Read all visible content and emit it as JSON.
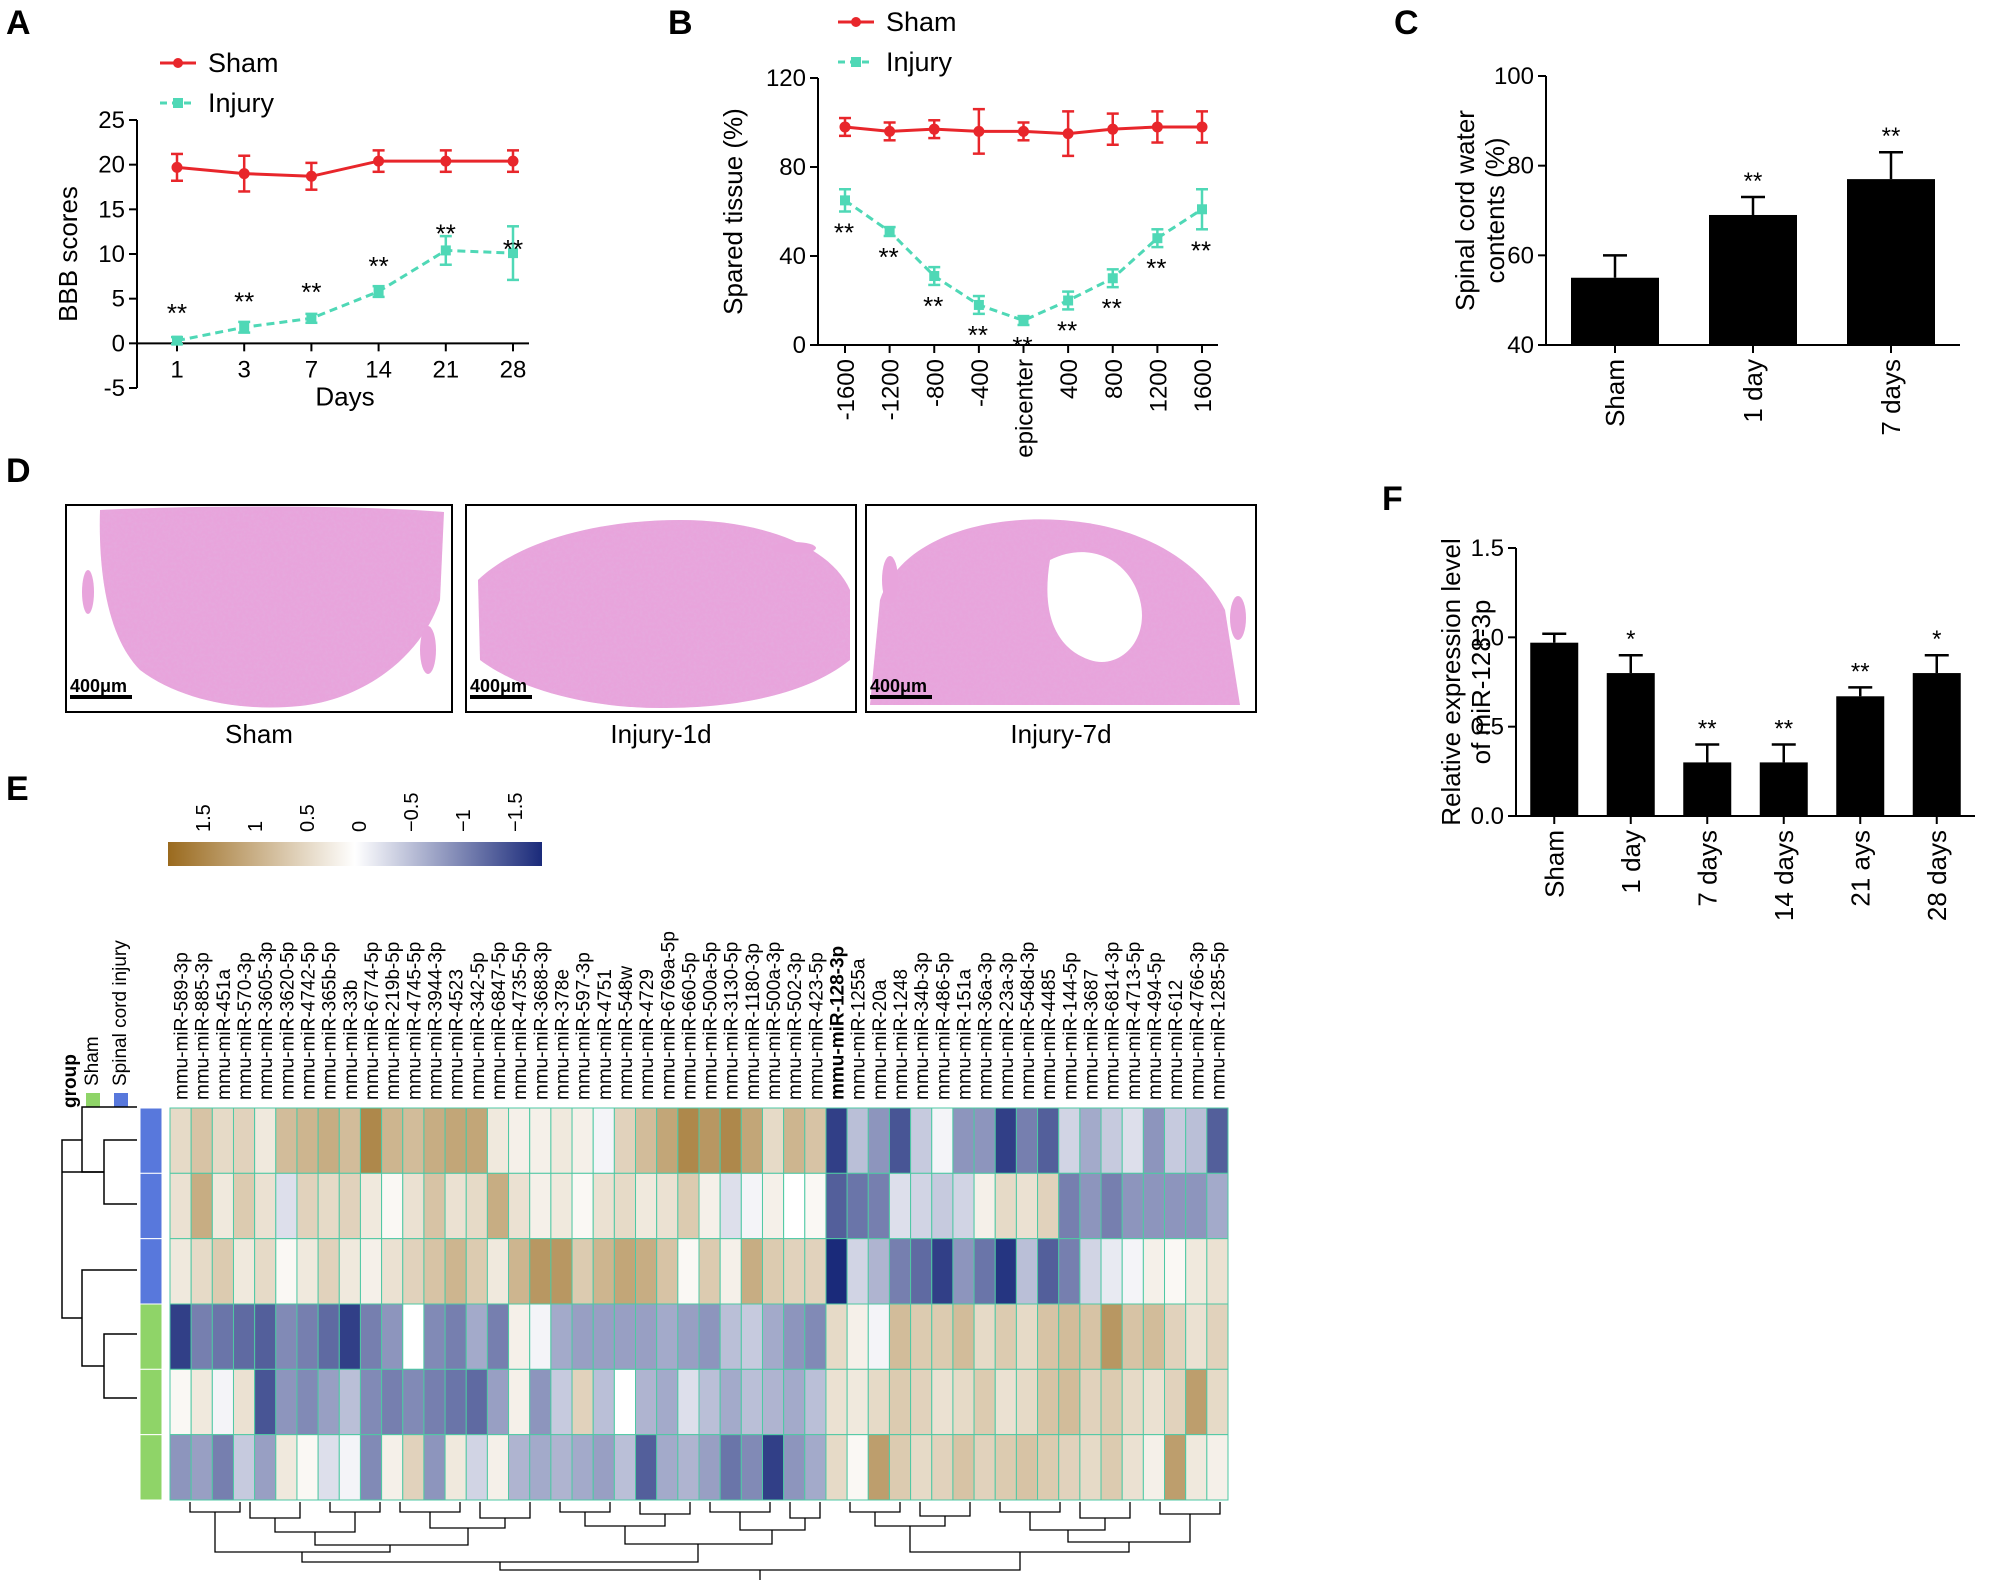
{
  "colors": {
    "sham_line": "#e8262b",
    "injury_line": "#4fd8b6",
    "bar": "#000000",
    "heat_high": "#9a6a1e",
    "heat_mid": "#ffffff",
    "heat_low": "#1a2a7a",
    "group_sham": "#8fd468",
    "group_injury": "#5878dc",
    "tissue": "#e8a4dc"
  },
  "chart_data": [
    {
      "panel": "A",
      "type": "line",
      "xlabel": "Days",
      "ylabel": "BBB scores",
      "categories": [
        "1",
        "3",
        "7",
        "14",
        "21",
        "28"
      ],
      "ylim": [
        -5,
        25
      ],
      "yticks": [
        "-5",
        "0",
        "5",
        "10",
        "15",
        "20",
        "25"
      ],
      "series": [
        {
          "name": "Sham",
          "values": [
            19.7,
            19.0,
            18.7,
            20.4,
            20.4,
            20.4
          ],
          "errors": [
            1.5,
            2.0,
            1.5,
            1.2,
            1.2,
            1.2
          ]
        },
        {
          "name": "Injury",
          "values": [
            0.3,
            1.8,
            2.8,
            5.8,
            10.4,
            10.1
          ],
          "errors": [
            0.4,
            0.6,
            0.5,
            0.6,
            1.6,
            3.0
          ],
          "significance": [
            "**",
            "**",
            "**",
            "**",
            "**",
            "**"
          ]
        }
      ]
    },
    {
      "panel": "B",
      "type": "line",
      "xlabel": "",
      "ylabel": "Spared tissue (%)",
      "categories": [
        "-1600",
        "-1200",
        "-800",
        "-400",
        "epicenter",
        "400",
        "800",
        "1200",
        "1600"
      ],
      "ylim": [
        0,
        120
      ],
      "yticks": [
        "0",
        "40",
        "80",
        "120"
      ],
      "series": [
        {
          "name": "Sham",
          "values": [
            98,
            96,
            97,
            96,
            96,
            95,
            97,
            98,
            98
          ],
          "errors": [
            4,
            4,
            4,
            10,
            4,
            10,
            7,
            7,
            7
          ]
        },
        {
          "name": "Injury",
          "values": [
            65,
            51,
            31,
            18,
            11,
            20,
            30,
            48,
            61
          ],
          "errors": [
            5,
            2,
            4,
            4,
            2,
            4,
            4,
            4,
            9
          ],
          "significance": [
            "**",
            "**",
            "**",
            "**",
            "**",
            "**",
            "**",
            "**",
            "**"
          ]
        }
      ]
    },
    {
      "panel": "C",
      "type": "bar",
      "xlabel": "",
      "ylabel": "Spinal cord water contents (%)",
      "ylabel_lines": [
        "Spinal cord water",
        "contents (%)"
      ],
      "categories": [
        "Sham",
        "1 day",
        "7 days"
      ],
      "values": [
        55,
        69,
        77
      ],
      "errors": [
        5,
        4,
        6
      ],
      "significance": [
        "",
        "**",
        "**"
      ],
      "ylim": [
        40,
        100
      ],
      "yticks": [
        "40",
        "60",
        "80",
        "100"
      ]
    },
    {
      "panel": "F",
      "type": "bar",
      "xlabel": "",
      "ylabel": "Relative expression level of miR-128-3p",
      "ylabel_lines": [
        "Relative expression level",
        "of miR-128-3p"
      ],
      "categories": [
        "Sham",
        "1 day",
        "7 days",
        "14 days",
        "21 ays",
        "28 days"
      ],
      "values": [
        0.97,
        0.8,
        0.3,
        0.3,
        0.67,
        0.8
      ],
      "errors": [
        0.05,
        0.1,
        0.1,
        0.1,
        0.05,
        0.1
      ],
      "significance": [
        "",
        "*",
        "**",
        "**",
        "**",
        "*"
      ],
      "ylim": [
        0,
        1.5
      ],
      "yticks": [
        "0.0",
        "0.5",
        "1.0",
        "1.5"
      ]
    },
    {
      "panel": "E",
      "type": "heatmap",
      "colorbar_ticks": [
        "1.5",
        "1",
        "0.5",
        "0",
        "−0.5",
        "−1",
        "−1.5"
      ],
      "group_legend_title": "group",
      "group_legend": [
        "Sham",
        "Spinal cord injury"
      ],
      "row_groups": [
        "Spinal cord injury",
        "Spinal cord injury",
        "Spinal cord injury",
        "Sham",
        "Sham",
        "Sham"
      ],
      "highlight_column": "mmu-miR-128-3p",
      "columns": [
        "mmu-miR-589-3p",
        "mmu-miR-885-3p",
        "mmu-miR-451a",
        "mmu-miR-570-3p",
        "mmu-miR-3605-3p",
        "mmu-miR-3620-5p",
        "mmu-miR-4742-5p",
        "mmu-miR-365b-5p",
        "mmu-miR-33b",
        "mmu-miR-6774-5p",
        "mmu-miR-219b-5p",
        "mmu-miR-4745-5p",
        "mmu-miR-3944-3p",
        "mmu-miR-4523",
        "mmu-miR-342-5p",
        "mmu-miR-6847-5p",
        "mmu-miR-4735-5p",
        "mmu-miR-3688-3p",
        "mmu-miR-378e",
        "mmu-miR-597-3p",
        "mmu-miR-4751",
        "mmu-miR-548w",
        "mmu-miR-4729",
        "mmu-miR-6769a-5p",
        "mmu-miR-660-5p",
        "mmu-miR-500a-5p",
        "mmu-miR-3130-5p",
        "mmu-miR-1180-3p",
        "mmu-miR-500a-3p",
        "mmu-miR-502-3p",
        "mmu-miR-423-5p",
        "mmu-miR-128-3p",
        "mmu-miR-1255a",
        "mmu-miR-20a",
        "mmu-miR-1248",
        "mmu-miR-34b-3p",
        "mmu-miR-486-5p",
        "mmu-miR-151a",
        "mmu-miR-36a-3p",
        "mmu-miR-23a-3p",
        "mmu-miR-548d-3p",
        "mmu-miR-4485",
        "mmu-miR-144-5p",
        "mmu-miR-3687",
        "mmu-miR-6814-3p",
        "mmu-miR-4713-5p",
        "mmu-miR-494-5p",
        "mmu-miR-612",
        "mmu-miR-4766-3p",
        "mmu-miR-1285-5p"
      ],
      "matrix": [
        [
          0.5,
          0.8,
          0.5,
          0.6,
          0.3,
          0.9,
          1.0,
          1.1,
          0.9,
          1.6,
          1.0,
          0.9,
          1.1,
          1.2,
          1.2,
          0.3,
          0.2,
          0.2,
          0.3,
          0.2,
          -0.1,
          0.6,
          0.9,
          1.2,
          1.6,
          1.4,
          1.6,
          1.2,
          0.5,
          1.0,
          0.8,
          -1.8,
          -0.6,
          -1.0,
          -1.6,
          -0.5,
          -0.1,
          -1.0,
          -1.0,
          -1.8,
          -1.2,
          -1.5,
          -0.4,
          -0.8,
          -0.5,
          -0.3,
          -1.0,
          -0.5,
          -0.6,
          -1.5
        ],
        [
          0.4,
          1.1,
          0.3,
          0.7,
          0.4,
          -0.3,
          0.6,
          0.5,
          0.6,
          0.3,
          0.1,
          0.4,
          0.8,
          0.4,
          0.5,
          1.1,
          0.4,
          0.2,
          0.3,
          0.1,
          0.4,
          0.5,
          0.3,
          0.4,
          0.7,
          0.2,
          -0.3,
          -0.1,
          0.2,
          0.0,
          0.1,
          -1.5,
          -1.3,
          -1.2,
          -0.3,
          -0.4,
          -0.5,
          -0.4,
          0.2,
          0.5,
          0.4,
          0.6,
          -1.2,
          -1.0,
          -1.2,
          -1.0,
          -1.0,
          -1.0,
          -1.0,
          -0.8
        ],
        [
          0.3,
          0.5,
          0.7,
          0.3,
          0.5,
          0.1,
          0.3,
          0.6,
          0.3,
          0.2,
          0.4,
          0.6,
          0.8,
          1.0,
          0.7,
          0.3,
          1.0,
          1.4,
          1.4,
          0.7,
          1.0,
          1.2,
          1.1,
          0.8,
          0.1,
          0.7,
          0.2,
          1.1,
          0.7,
          0.6,
          0.6,
          -2.5,
          -0.4,
          -0.7,
          -1.2,
          -1.4,
          -1.8,
          -1.0,
          -1.3,
          -1.9,
          -0.6,
          -1.5,
          -1.2,
          -0.4,
          -0.2,
          -0.1,
          0.2,
          0.1,
          0.3,
          0.4
        ],
        [
          -1.8,
          -1.2,
          -1.3,
          -1.4,
          -1.5,
          -1.1,
          -1.2,
          -1.4,
          -1.8,
          -1.2,
          -1.0,
          0.0,
          -1.1,
          -1.2,
          -0.8,
          -1.2,
          0.2,
          -0.1,
          -0.8,
          -0.9,
          -0.9,
          -0.9,
          -0.9,
          -0.8,
          -0.9,
          -1.0,
          -0.6,
          -0.5,
          -0.8,
          -1.0,
          -1.1,
          0.5,
          0.2,
          -0.1,
          0.9,
          0.7,
          0.7,
          0.9,
          0.5,
          0.7,
          0.5,
          0.8,
          0.9,
          0.8,
          1.4,
          0.8,
          0.9,
          0.6,
          0.4,
          0.6
        ],
        [
          0.1,
          0.3,
          -0.1,
          0.4,
          -1.6,
          -1.0,
          -1.1,
          -0.9,
          -0.6,
          -1.1,
          -1.2,
          -1.1,
          -1.2,
          -1.3,
          -1.4,
          -0.9,
          0.2,
          -1.0,
          -0.5,
          0.6,
          -0.6,
          0.0,
          -0.7,
          -0.8,
          -0.3,
          -0.6,
          -0.8,
          -0.6,
          -0.7,
          -0.8,
          -0.6,
          0.4,
          0.3,
          0.5,
          0.7,
          0.6,
          0.4,
          0.5,
          0.7,
          0.4,
          0.5,
          0.8,
          0.9,
          0.6,
          0.7,
          0.5,
          0.4,
          0.6,
          1.3,
          0.5
        ],
        [
          -1.0,
          -0.9,
          -1.2,
          -0.5,
          -0.9,
          0.3,
          0.1,
          -0.3,
          -0.1,
          -1.1,
          0.2,
          0.6,
          -1.0,
          0.3,
          -0.4,
          0.2,
          -0.7,
          -0.8,
          -0.7,
          -0.8,
          -0.9,
          -0.6,
          -1.5,
          -0.8,
          -0.7,
          -0.9,
          -1.3,
          -1.1,
          -1.8,
          -1.0,
          -0.8,
          0.5,
          0.1,
          1.3,
          0.7,
          0.5,
          0.6,
          0.8,
          0.6,
          0.7,
          0.8,
          0.7,
          0.6,
          0.5,
          0.7,
          0.4,
          0.2,
          1.3,
          0.3,
          0.2
        ]
      ]
    }
  ],
  "panels": {
    "a": {
      "label": "A",
      "legend": [
        "Sham",
        "Injury"
      ]
    },
    "b": {
      "label": "B",
      "legend": [
        "Sham",
        "Injury"
      ]
    },
    "c": {
      "label": "C"
    },
    "d": {
      "label": "D",
      "images": [
        {
          "caption": "Sham",
          "scale_bar": "400μm"
        },
        {
          "caption": "Injury-1d",
          "scale_bar": "400μm"
        },
        {
          "caption": "Injury-7d",
          "scale_bar": "400μm"
        }
      ]
    },
    "e": {
      "label": "E"
    },
    "f": {
      "label": "F"
    }
  }
}
